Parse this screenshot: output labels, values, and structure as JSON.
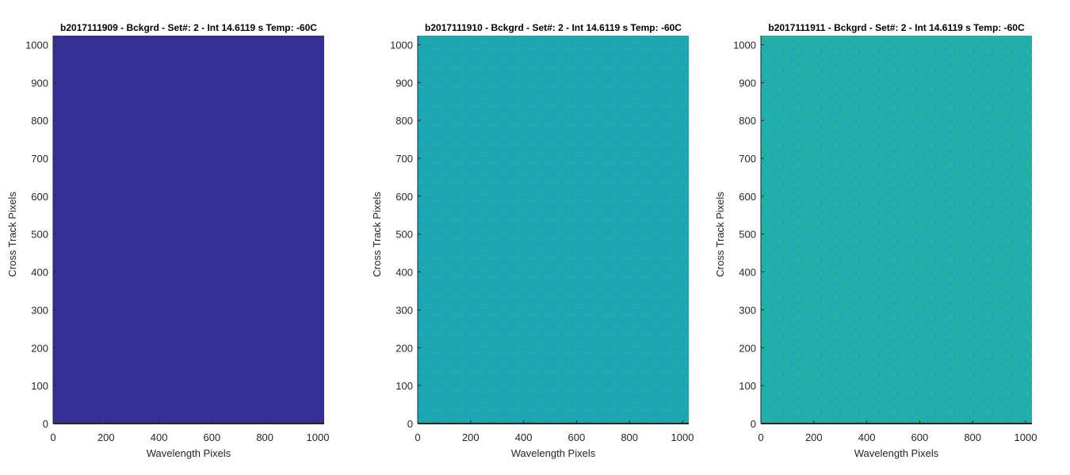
{
  "chart_data": [
    {
      "type": "heatmap",
      "title": "b2017111909 - Bckgrd - Set#: 2 - Int 14.6119 s Temp: -60C",
      "xlabel": "Wavelength Pixels",
      "ylabel": "Cross Track Pixels",
      "xlim": [
        0,
        1024
      ],
      "ylim": [
        0,
        1024
      ],
      "xticks": [
        0,
        200,
        400,
        600,
        800,
        1000
      ],
      "yticks": [
        0,
        100,
        200,
        300,
        400,
        500,
        600,
        700,
        800,
        900,
        1000
      ],
      "colormap": "parula",
      "base_color": "#352f96",
      "noise_colors": [
        "#362f98",
        "#34309a"
      ],
      "grid": false
    },
    {
      "type": "heatmap",
      "title": "b2017111910 - Bckgrd - Set#: 2 - Int 14.6119 s Temp: -60C",
      "xlabel": "Wavelength Pixels",
      "ylabel": "Cross Track Pixels",
      "xlim": [
        0,
        1024
      ],
      "ylim": [
        0,
        1024
      ],
      "xticks": [
        0,
        200,
        400,
        600,
        800,
        1000
      ],
      "yticks": [
        0,
        100,
        200,
        300,
        400,
        500,
        600,
        700,
        800,
        900,
        1000
      ],
      "colormap": "parula",
      "base_color": "#1aa7b3",
      "noise_colors": [
        "#1a9fbe",
        "#22b0a4",
        "#2ab799"
      ],
      "grid": false
    },
    {
      "type": "heatmap",
      "title": "b2017111911 - Bckgrd - Set#: 2 - Int 14.6119 s Temp: -60C",
      "xlabel": "Wavelength Pixels",
      "ylabel": "Cross Track Pixels",
      "xlim": [
        0,
        1024
      ],
      "ylim": [
        0,
        1024
      ],
      "xticks": [
        0,
        200,
        400,
        600,
        800,
        1000
      ],
      "yticks": [
        0,
        100,
        200,
        300,
        400,
        500,
        600,
        700,
        800,
        900,
        1000
      ],
      "colormap": "parula",
      "base_color": "#1faeab",
      "noise_colors": [
        "#1aa3b8",
        "#2ab69c",
        "#36bc8d"
      ],
      "grid": false
    }
  ]
}
